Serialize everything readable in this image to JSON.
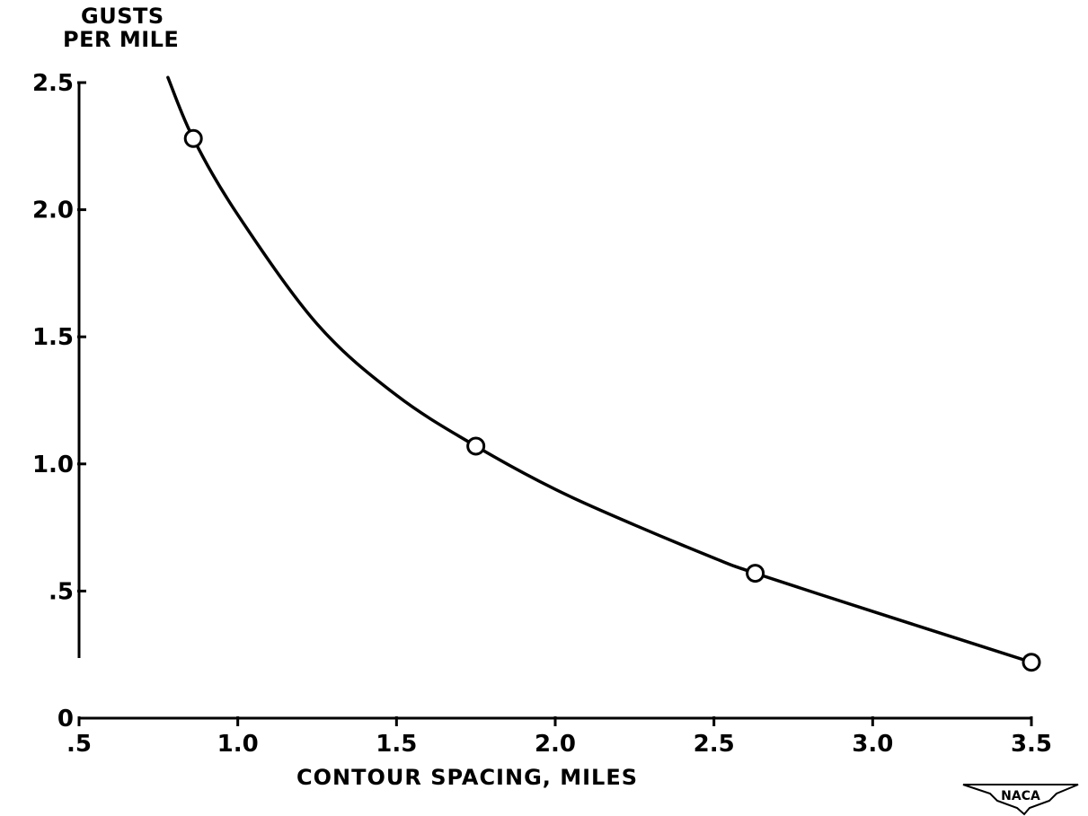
{
  "chart_data": {
    "type": "line",
    "title": "",
    "ylabel_lines": [
      "GUSTS",
      "PER MILE"
    ],
    "xlabel": "CONTOUR SPACING, MILES",
    "xlim": [
      0.5,
      3.5
    ],
    "ylim": [
      0,
      2.5
    ],
    "x_ticks": [
      0.5,
      1.0,
      1.5,
      2.0,
      2.5,
      3.0,
      3.5
    ],
    "x_tick_labels": [
      ".5",
      "1.0",
      "1.5",
      "2.0",
      "2.5",
      "3.0",
      "3.5"
    ],
    "y_ticks": [
      0,
      0.5,
      1.0,
      1.5,
      2.0,
      2.5
    ],
    "y_tick_labels": [
      "0",
      ".5",
      "1.0",
      "1.5",
      "2.0",
      "2.5"
    ],
    "grid": false,
    "series": [
      {
        "points": [
          {
            "x": 0.86,
            "y": 2.28
          },
          {
            "x": 1.75,
            "y": 1.07
          },
          {
            "x": 2.63,
            "y": 0.57
          },
          {
            "x": 3.5,
            "y": 0.22
          }
        ],
        "curve": [
          {
            "x": 0.78,
            "y": 2.52
          },
          {
            "x": 0.86,
            "y": 2.28
          },
          {
            "x": 1.0,
            "y": 1.98
          },
          {
            "x": 1.25,
            "y": 1.55
          },
          {
            "x": 1.5,
            "y": 1.27
          },
          {
            "x": 1.75,
            "y": 1.07
          },
          {
            "x": 2.0,
            "y": 0.9
          },
          {
            "x": 2.25,
            "y": 0.76
          },
          {
            "x": 2.5,
            "y": 0.63
          },
          {
            "x": 2.63,
            "y": 0.57
          },
          {
            "x": 3.0,
            "y": 0.42
          },
          {
            "x": 3.25,
            "y": 0.32
          },
          {
            "x": 3.5,
            "y": 0.22
          }
        ]
      }
    ],
    "logo_text": "NACA"
  }
}
